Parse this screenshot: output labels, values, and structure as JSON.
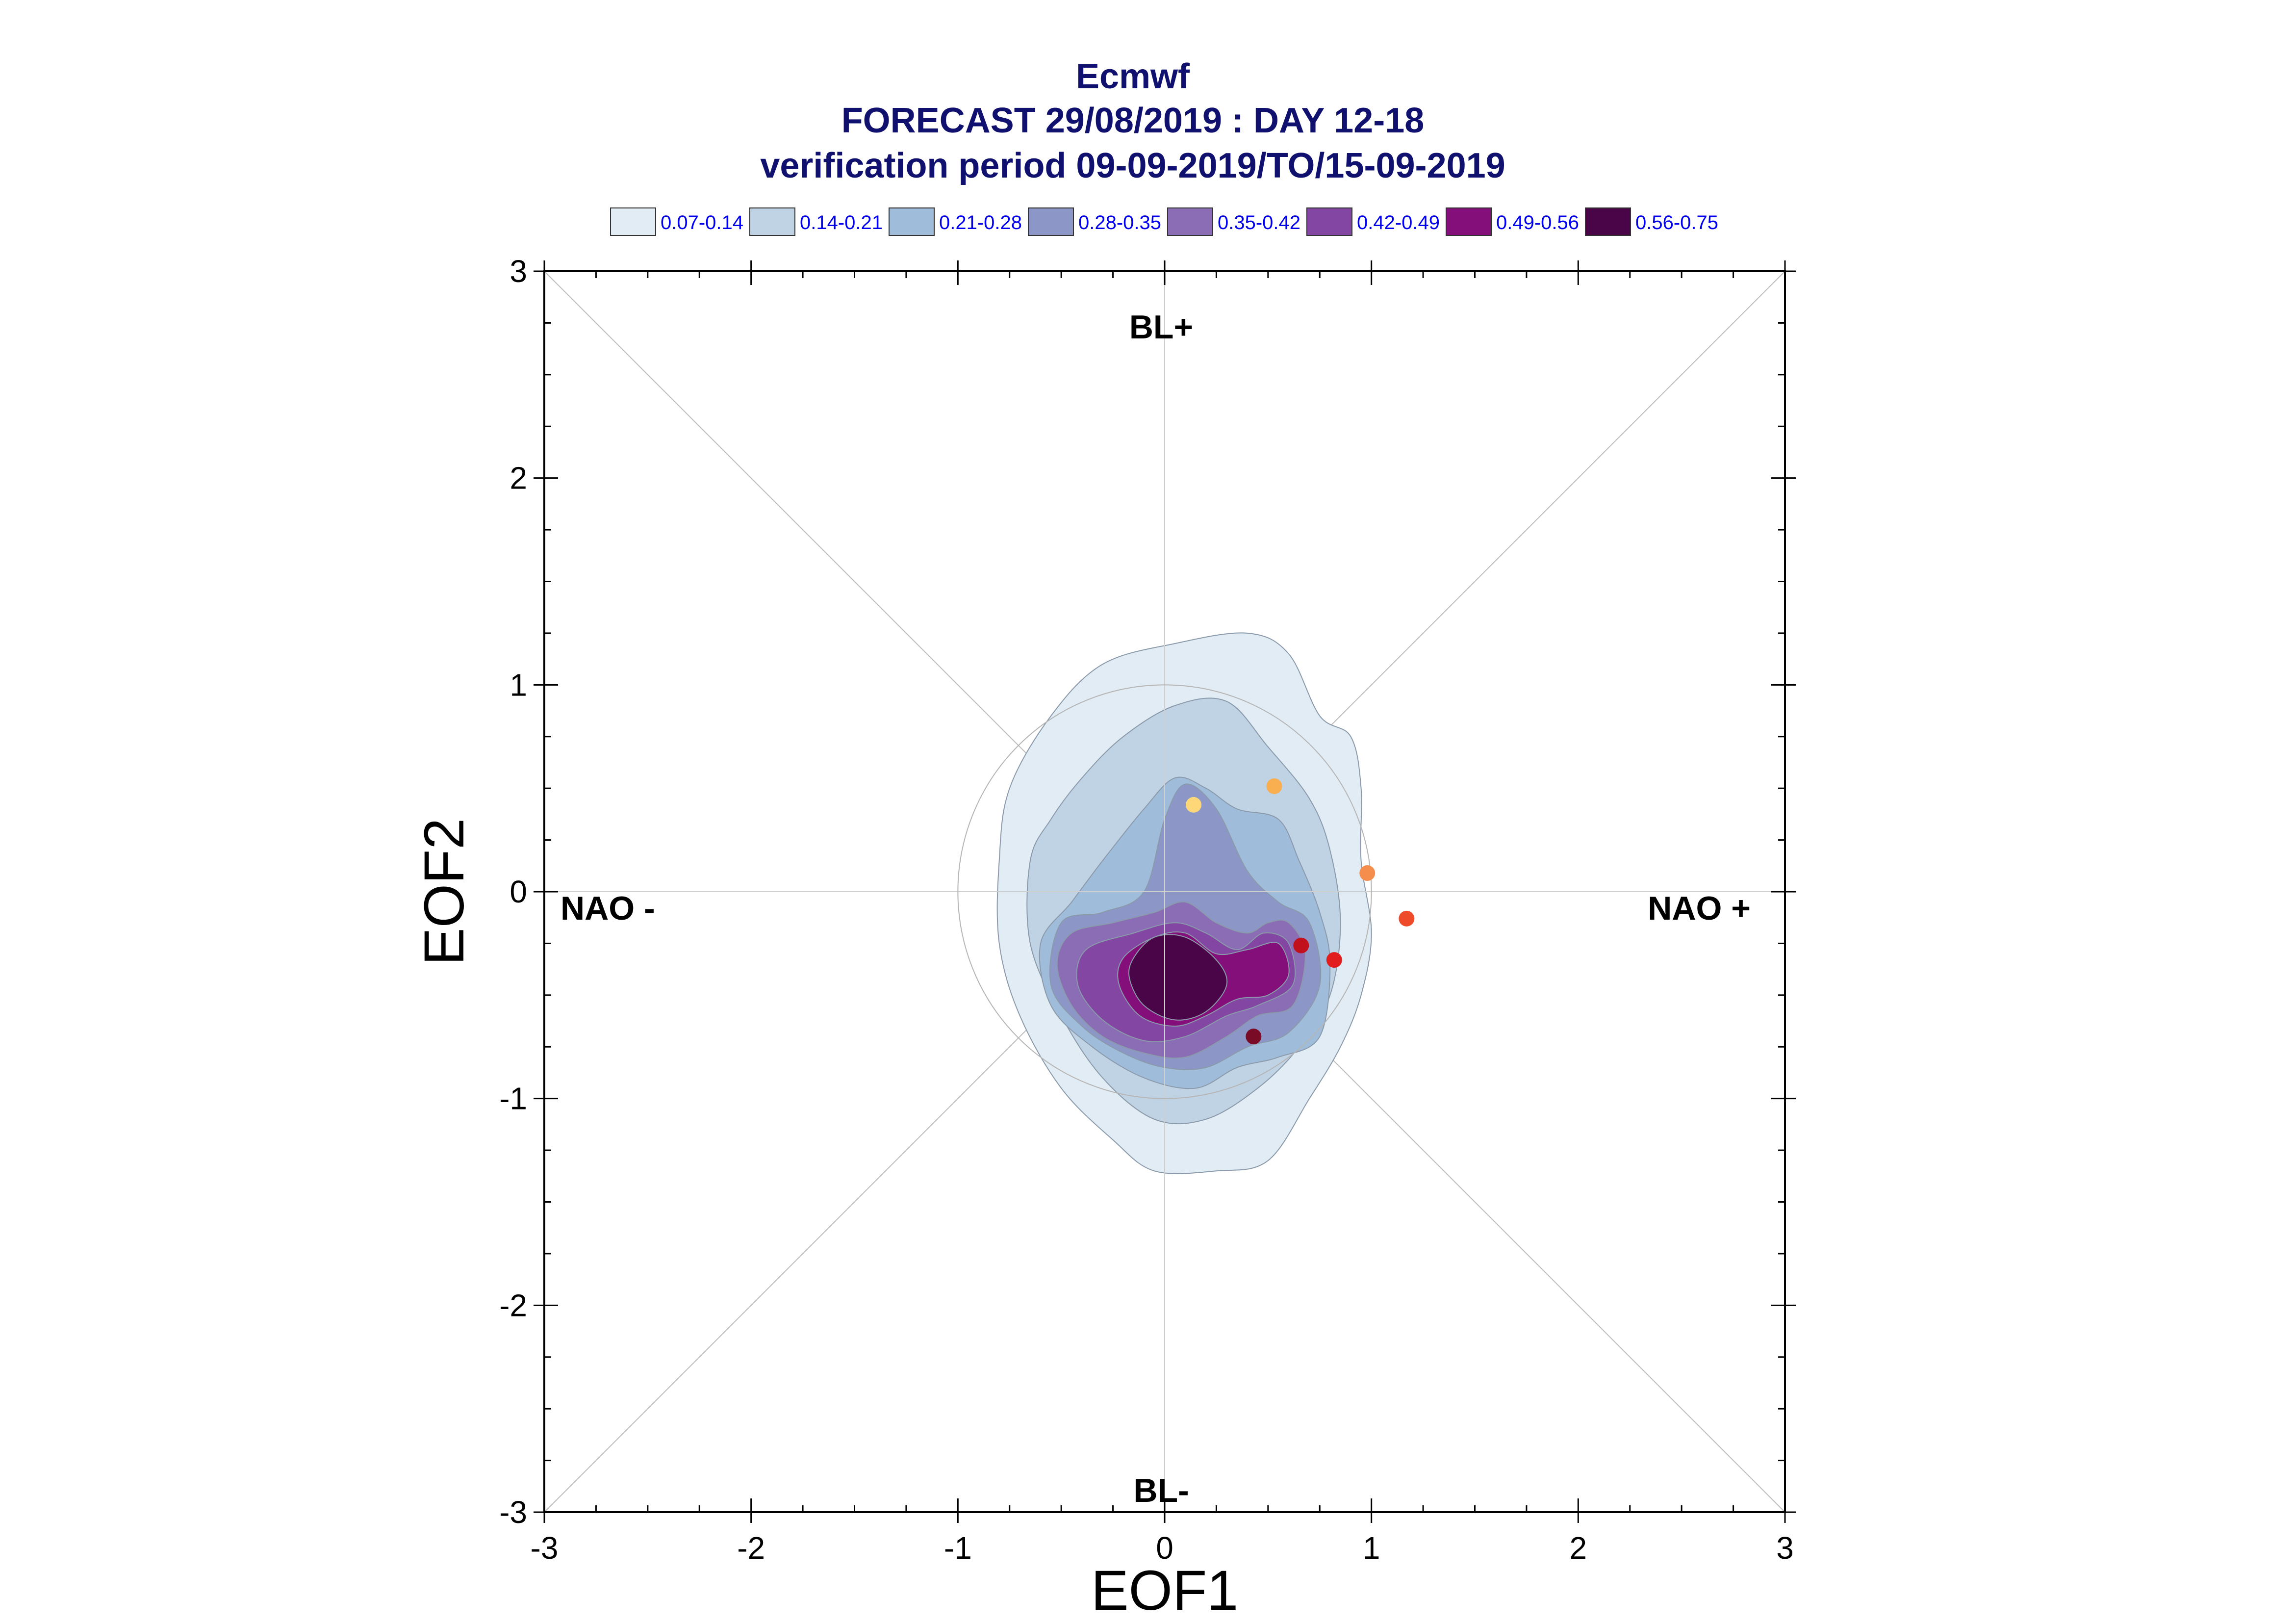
{
  "header": {
    "line1": "Ecmwf",
    "line2": "FORECAST 29/08/2019 : DAY 12-18",
    "line3": "verification period 09-09-2019/TO/15-09-2019"
  },
  "legend": [
    {
      "label": "0.07-0.14",
      "color": "#e2ecf4"
    },
    {
      "label": "0.14-0.21",
      "color": "#c0d3e5"
    },
    {
      "label": "0.21-0.28",
      "color": "#9fbcda"
    },
    {
      "label": "0.28-0.35",
      "color": "#8c97c8"
    },
    {
      "label": "0.35-0.42",
      "color": "#8a6db5"
    },
    {
      "label": "0.42-0.49",
      "color": "#8346a2"
    },
    {
      "label": "0.49-0.56",
      "color": "#850f7a"
    },
    {
      "label": "0.56-0.75",
      "color": "#4a0448"
    }
  ],
  "axes": {
    "xlabel": "EOF1",
    "ylabel": "EOF2",
    "xlim": [
      -3,
      3
    ],
    "ylim": [
      -3,
      3
    ],
    "xticks": [
      "-3",
      "-2",
      "-1",
      "0",
      "1",
      "2",
      "3"
    ],
    "yticks": [
      "-3",
      "-2",
      "-1",
      "0",
      "1",
      "2",
      "3"
    ]
  },
  "regimes": {
    "top": "BL+",
    "bottom": "BL-",
    "left": "NAO -",
    "right": "NAO +"
  },
  "chart_data": {
    "type": "scatter",
    "density_levels": [
      {
        "range": "0.07-0.14",
        "color": "#e2ecf4",
        "contour": [
          [
            -0.55,
            0.85
          ],
          [
            -0.3,
            1.1
          ],
          [
            0.05,
            1.2
          ],
          [
            0.4,
            1.25
          ],
          [
            0.6,
            1.15
          ],
          [
            0.75,
            0.85
          ],
          [
            0.9,
            0.75
          ],
          [
            0.95,
            0.5
          ],
          [
            0.95,
            0.15
          ],
          [
            1.0,
            -0.2
          ],
          [
            0.95,
            -0.5
          ],
          [
            0.85,
            -0.75
          ],
          [
            0.7,
            -1.0
          ],
          [
            0.5,
            -1.3
          ],
          [
            0.25,
            -1.35
          ],
          [
            -0.05,
            -1.35
          ],
          [
            -0.25,
            -1.2
          ],
          [
            -0.5,
            -0.95
          ],
          [
            -0.7,
            -0.6
          ],
          [
            -0.8,
            -0.25
          ],
          [
            -0.8,
            0.15
          ],
          [
            -0.75,
            0.5
          ]
        ]
      },
      {
        "range": "0.14-0.21",
        "color": "#c0d3e5",
        "contour": [
          [
            -0.4,
            0.55
          ],
          [
            -0.2,
            0.75
          ],
          [
            0.05,
            0.9
          ],
          [
            0.3,
            0.92
          ],
          [
            0.5,
            0.7
          ],
          [
            0.7,
            0.45
          ],
          [
            0.8,
            0.2
          ],
          [
            0.85,
            -0.15
          ],
          [
            0.8,
            -0.5
          ],
          [
            0.65,
            -0.75
          ],
          [
            0.45,
            -0.95
          ],
          [
            0.2,
            -1.1
          ],
          [
            -0.05,
            -1.1
          ],
          [
            -0.3,
            -0.9
          ],
          [
            -0.5,
            -0.6
          ],
          [
            -0.65,
            -0.25
          ],
          [
            -0.65,
            0.15
          ],
          [
            -0.55,
            0.35
          ]
        ]
      },
      {
        "range": "0.21-0.28",
        "color": "#9fbcda",
        "contour": [
          [
            -0.45,
            -0.05
          ],
          [
            -0.3,
            0.15
          ],
          [
            -0.1,
            0.4
          ],
          [
            0.05,
            0.55
          ],
          [
            0.2,
            0.5
          ],
          [
            0.35,
            0.4
          ],
          [
            0.55,
            0.35
          ],
          [
            0.65,
            0.15
          ],
          [
            0.75,
            -0.1
          ],
          [
            0.8,
            -0.35
          ],
          [
            0.75,
            -0.7
          ],
          [
            0.55,
            -0.8
          ],
          [
            0.35,
            -0.85
          ],
          [
            0.15,
            -0.95
          ],
          [
            -0.1,
            -0.9
          ],
          [
            -0.35,
            -0.75
          ],
          [
            -0.55,
            -0.55
          ],
          [
            -0.6,
            -0.25
          ]
        ]
      },
      {
        "range": "0.28-0.35",
        "color": "#8c97c8",
        "contour": [
          [
            -0.5,
            -0.15
          ],
          [
            -0.3,
            -0.1
          ],
          [
            -0.1,
            0.0
          ],
          [
            0.0,
            0.35
          ],
          [
            0.1,
            0.52
          ],
          [
            0.25,
            0.4
          ],
          [
            0.4,
            0.1
          ],
          [
            0.55,
            -0.05
          ],
          [
            0.7,
            -0.15
          ],
          [
            0.75,
            -0.45
          ],
          [
            0.6,
            -0.68
          ],
          [
            0.4,
            -0.75
          ],
          [
            0.2,
            -0.85
          ],
          [
            0.0,
            -0.85
          ],
          [
            -0.2,
            -0.78
          ],
          [
            -0.4,
            -0.65
          ],
          [
            -0.55,
            -0.45
          ]
        ]
      },
      {
        "range": "0.35-0.42",
        "color": "#8a6db5",
        "contour": [
          [
            -0.45,
            -0.2
          ],
          [
            -0.25,
            -0.15
          ],
          [
            -0.05,
            -0.1
          ],
          [
            0.1,
            -0.05
          ],
          [
            0.25,
            -0.15
          ],
          [
            0.4,
            -0.2
          ],
          [
            0.5,
            -0.15
          ],
          [
            0.6,
            -0.15
          ],
          [
            0.68,
            -0.3
          ],
          [
            0.62,
            -0.55
          ],
          [
            0.45,
            -0.6
          ],
          [
            0.3,
            -0.7
          ],
          [
            0.1,
            -0.8
          ],
          [
            -0.1,
            -0.78
          ],
          [
            -0.3,
            -0.7
          ],
          [
            -0.45,
            -0.55
          ],
          [
            -0.52,
            -0.35
          ]
        ]
      },
      {
        "range": "0.42-0.49",
        "color": "#8346a2",
        "contour": [
          [
            -0.38,
            -0.28
          ],
          [
            -0.15,
            -0.2
          ],
          [
            0.05,
            -0.15
          ],
          [
            0.2,
            -0.2
          ],
          [
            0.35,
            -0.28
          ],
          [
            0.48,
            -0.2
          ],
          [
            0.6,
            -0.25
          ],
          [
            0.62,
            -0.45
          ],
          [
            0.45,
            -0.55
          ],
          [
            0.3,
            -0.6
          ],
          [
            0.1,
            -0.7
          ],
          [
            -0.1,
            -0.72
          ],
          [
            -0.3,
            -0.62
          ],
          [
            -0.42,
            -0.45
          ]
        ]
      },
      {
        "range": "0.49-0.56",
        "color": "#850f7a",
        "contour": [
          [
            -0.2,
            -0.32
          ],
          [
            -0.05,
            -0.22
          ],
          [
            0.1,
            -0.2
          ],
          [
            0.25,
            -0.3
          ],
          [
            0.4,
            -0.28
          ],
          [
            0.55,
            -0.25
          ],
          [
            0.6,
            -0.4
          ],
          [
            0.5,
            -0.5
          ],
          [
            0.35,
            -0.52
          ],
          [
            0.2,
            -0.6
          ],
          [
            0.05,
            -0.65
          ],
          [
            -0.12,
            -0.6
          ],
          [
            -0.22,
            -0.45
          ]
        ]
      },
      {
        "range": "0.56-0.75",
        "color": "#4a0448",
        "contour": [
          [
            -0.15,
            -0.32
          ],
          [
            -0.05,
            -0.22
          ],
          [
            0.1,
            -0.22
          ],
          [
            0.25,
            -0.33
          ],
          [
            0.3,
            -0.45
          ],
          [
            0.2,
            -0.58
          ],
          [
            0.05,
            -0.62
          ],
          [
            -0.1,
            -0.55
          ],
          [
            -0.17,
            -0.42
          ]
        ]
      }
    ],
    "points": [
      {
        "x": 0.14,
        "y": 0.42,
        "color": "#fdd778"
      },
      {
        "x": 0.53,
        "y": 0.51,
        "color": "#f9ae50"
      },
      {
        "x": 0.98,
        "y": 0.09,
        "color": "#f58d4d"
      },
      {
        "x": 1.17,
        "y": -0.13,
        "color": "#ee4b2b"
      },
      {
        "x": 0.82,
        "y": -0.33,
        "color": "#e11d1d"
      },
      {
        "x": 0.66,
        "y": -0.26,
        "color": "#c1111c"
      },
      {
        "x": 0.43,
        "y": -0.7,
        "color": "#7a0b26"
      }
    ],
    "reference_circle_radius": 1.0,
    "diagonals": true,
    "grid": false
  }
}
